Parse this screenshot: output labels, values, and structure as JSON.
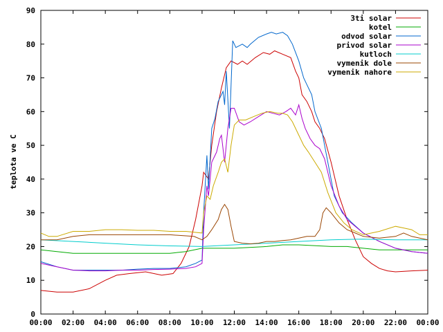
{
  "chart_data": {
    "type": "line",
    "title": "",
    "xlabel": "",
    "ylabel": "teplota ve C",
    "xlim": [
      0,
      24
    ],
    "ylim": [
      0,
      90
    ],
    "x_ticks": [
      {
        "value": 0,
        "label": "00:00"
      },
      {
        "value": 2,
        "label": "02:00"
      },
      {
        "value": 4,
        "label": "04:00"
      },
      {
        "value": 6,
        "label": "06:00"
      },
      {
        "value": 8,
        "label": "08:00"
      },
      {
        "value": 10,
        "label": "10:00"
      },
      {
        "value": 12,
        "label": "12:00"
      },
      {
        "value": 14,
        "label": "14:00"
      },
      {
        "value": 16,
        "label": "16:00"
      },
      {
        "value": 18,
        "label": "18:00"
      },
      {
        "value": 20,
        "label": "20:00"
      },
      {
        "value": 22,
        "label": "22:00"
      },
      {
        "value": 24,
        "label": "00:00"
      }
    ],
    "y_ticks": [
      0,
      10,
      20,
      30,
      40,
      50,
      60,
      70,
      80,
      90
    ],
    "grid": false,
    "legend_position": "top-right",
    "series": [
      {
        "name": "3ti solar",
        "color": "#cc0000",
        "points": [
          [
            0,
            7
          ],
          [
            1,
            6.5
          ],
          [
            2,
            6.5
          ],
          [
            3,
            7.5
          ],
          [
            4,
            10
          ],
          [
            4.7,
            11.5
          ],
          [
            5.5,
            12
          ],
          [
            6.5,
            12.5
          ],
          [
            7.5,
            11.5
          ],
          [
            8.2,
            12
          ],
          [
            8.7,
            15
          ],
          [
            9.2,
            20
          ],
          [
            9.6,
            28
          ],
          [
            10,
            38
          ],
          [
            10.1,
            42
          ],
          [
            10.4,
            40
          ],
          [
            10.6,
            50
          ],
          [
            10.9,
            60
          ],
          [
            11.2,
            67
          ],
          [
            11.5,
            73
          ],
          [
            11.8,
            75
          ],
          [
            12.2,
            74
          ],
          [
            12.5,
            75
          ],
          [
            12.8,
            74
          ],
          [
            13.3,
            76
          ],
          [
            13.8,
            77.5
          ],
          [
            14.2,
            77
          ],
          [
            14.5,
            78
          ],
          [
            15,
            77
          ],
          [
            15.5,
            76
          ],
          [
            15.8,
            72
          ],
          [
            16,
            70
          ],
          [
            16.2,
            65
          ],
          [
            16.5,
            63
          ],
          [
            16.8,
            60
          ],
          [
            17,
            57
          ],
          [
            17.3,
            55
          ],
          [
            17.6,
            52
          ],
          [
            18,
            45
          ],
          [
            18.5,
            35
          ],
          [
            19,
            28
          ],
          [
            19.5,
            22
          ],
          [
            20,
            17
          ],
          [
            20.5,
            15
          ],
          [
            21,
            13.5
          ],
          [
            21.5,
            12.8
          ],
          [
            22,
            12.5
          ],
          [
            23,
            12.8
          ],
          [
            24,
            13
          ]
        ]
      },
      {
        "name": "kotel",
        "color": "#00aa00",
        "points": [
          [
            0,
            19
          ],
          [
            1,
            18.5
          ],
          [
            2,
            18
          ],
          [
            4,
            18
          ],
          [
            6,
            18
          ],
          [
            8,
            18
          ],
          [
            9,
            18.5
          ],
          [
            10,
            19.5
          ],
          [
            11,
            19.5
          ],
          [
            12,
            19.5
          ],
          [
            14,
            20
          ],
          [
            15,
            20.5
          ],
          [
            16,
            20.5
          ],
          [
            18,
            20
          ],
          [
            19,
            20
          ],
          [
            20,
            19.5
          ],
          [
            21,
            19
          ],
          [
            22,
            19
          ],
          [
            23,
            19
          ],
          [
            24,
            19
          ]
        ]
      },
      {
        "name": "odvod solar",
        "color": "#0066cc",
        "points": [
          [
            0,
            15.5
          ],
          [
            1,
            14
          ],
          [
            2,
            13
          ],
          [
            3,
            13
          ],
          [
            4,
            13
          ],
          [
            5,
            13
          ],
          [
            6,
            13.3
          ],
          [
            7,
            13.5
          ],
          [
            8,
            13.5
          ],
          [
            9,
            14
          ],
          [
            9.6,
            15
          ],
          [
            10,
            16
          ],
          [
            10.1,
            30
          ],
          [
            10.3,
            47
          ],
          [
            10.4,
            37
          ],
          [
            10.6,
            55
          ],
          [
            10.8,
            58
          ],
          [
            11,
            63
          ],
          [
            11.3,
            66
          ],
          [
            11.4,
            62
          ],
          [
            11.5,
            72
          ],
          [
            11.7,
            55
          ],
          [
            11.9,
            81
          ],
          [
            12.1,
            79
          ],
          [
            12.5,
            80
          ],
          [
            12.8,
            79
          ],
          [
            13,
            80
          ],
          [
            13.5,
            82
          ],
          [
            14,
            83
          ],
          [
            14.3,
            83.5
          ],
          [
            14.6,
            83
          ],
          [
            15,
            83.5
          ],
          [
            15.3,
            82.5
          ],
          [
            15.6,
            80
          ],
          [
            16,
            75
          ],
          [
            16.3,
            70
          ],
          [
            16.5,
            68
          ],
          [
            16.8,
            65
          ],
          [
            17,
            60
          ],
          [
            17.4,
            55
          ],
          [
            17.8,
            45
          ],
          [
            18.2,
            35
          ],
          [
            18.7,
            30
          ],
          [
            19.3,
            27
          ],
          [
            20,
            24
          ],
          [
            21,
            21.5
          ],
          [
            22,
            19.5
          ],
          [
            23,
            18.5
          ],
          [
            24,
            18
          ]
        ]
      },
      {
        "name": "privod solar",
        "color": "#aa00cc",
        "points": [
          [
            0,
            15
          ],
          [
            1,
            14
          ],
          [
            2,
            13
          ],
          [
            3,
            12.8
          ],
          [
            4,
            12.8
          ],
          [
            5,
            13
          ],
          [
            6,
            13
          ],
          [
            7,
            13.2
          ],
          [
            8,
            13.3
          ],
          [
            9,
            13.5
          ],
          [
            9.6,
            14
          ],
          [
            10,
            15
          ],
          [
            10.1,
            25
          ],
          [
            10.3,
            38
          ],
          [
            10.4,
            35
          ],
          [
            10.6,
            45
          ],
          [
            10.9,
            48
          ],
          [
            11.1,
            52
          ],
          [
            11.2,
            53
          ],
          [
            11.4,
            45
          ],
          [
            11.6,
            55
          ],
          [
            11.8,
            61
          ],
          [
            12,
            61
          ],
          [
            12.3,
            57
          ],
          [
            12.6,
            56
          ],
          [
            13,
            57
          ],
          [
            13.5,
            58.5
          ],
          [
            14,
            60
          ],
          [
            14.4,
            59.5
          ],
          [
            14.8,
            59
          ],
          [
            15.2,
            60
          ],
          [
            15.5,
            61
          ],
          [
            15.8,
            59
          ],
          [
            16,
            62
          ],
          [
            16.2,
            58
          ],
          [
            16.4,
            55
          ],
          [
            16.7,
            52
          ],
          [
            17,
            50
          ],
          [
            17.3,
            49
          ],
          [
            17.6,
            46
          ],
          [
            18,
            38
          ],
          [
            18.5,
            32
          ],
          [
            19,
            28
          ],
          [
            19.5,
            26
          ],
          [
            20,
            24
          ],
          [
            21,
            21.5
          ],
          [
            22,
            19.5
          ],
          [
            23,
            18.5
          ],
          [
            24,
            18
          ]
        ]
      },
      {
        "name": "kutloch",
        "color": "#00cccc",
        "points": [
          [
            0,
            22
          ],
          [
            2,
            21.5
          ],
          [
            4,
            21
          ],
          [
            6,
            20.5
          ],
          [
            8,
            20.2
          ],
          [
            10,
            20
          ],
          [
            12,
            20.5
          ],
          [
            14,
            21
          ],
          [
            16,
            21.5
          ],
          [
            18,
            22
          ],
          [
            20,
            22.2
          ],
          [
            22,
            22
          ],
          [
            24,
            22
          ]
        ]
      },
      {
        "name": "vymenik dole",
        "color": "#994400",
        "points": [
          [
            0,
            22
          ],
          [
            1,
            22
          ],
          [
            2,
            23
          ],
          [
            3,
            23.5
          ],
          [
            4,
            23.5
          ],
          [
            6,
            23.5
          ],
          [
            8,
            23.5
          ],
          [
            9.5,
            23
          ],
          [
            10,
            22
          ],
          [
            10.3,
            23
          ],
          [
            10.6,
            25
          ],
          [
            11,
            28
          ],
          [
            11.2,
            31
          ],
          [
            11.4,
            32.5
          ],
          [
            11.6,
            31
          ],
          [
            11.8,
            26
          ],
          [
            12,
            21.5
          ],
          [
            12.5,
            21
          ],
          [
            13,
            20.8
          ],
          [
            13.5,
            21
          ],
          [
            14,
            21.5
          ],
          [
            14.5,
            21.5
          ],
          [
            15,
            21.8
          ],
          [
            15.5,
            22
          ],
          [
            16,
            22.5
          ],
          [
            16.5,
            23
          ],
          [
            17,
            23
          ],
          [
            17.3,
            25
          ],
          [
            17.5,
            30
          ],
          [
            17.7,
            31.5
          ],
          [
            18,
            30
          ],
          [
            18.5,
            27
          ],
          [
            19,
            25
          ],
          [
            19.5,
            24
          ],
          [
            20,
            23
          ],
          [
            21,
            22.5
          ],
          [
            22,
            23
          ],
          [
            22.5,
            24
          ],
          [
            23,
            23
          ],
          [
            24,
            22
          ]
        ]
      },
      {
        "name": "vymenik nahore",
        "color": "#ccaa00",
        "points": [
          [
            0,
            24
          ],
          [
            0.5,
            23
          ],
          [
            1,
            23
          ],
          [
            2,
            24.5
          ],
          [
            3,
            24.5
          ],
          [
            4,
            25
          ],
          [
            5,
            25
          ],
          [
            6,
            24.8
          ],
          [
            7,
            24.8
          ],
          [
            8,
            24.5
          ],
          [
            9,
            24.5
          ],
          [
            10,
            24
          ],
          [
            10.1,
            30
          ],
          [
            10.3,
            35
          ],
          [
            10.5,
            34
          ],
          [
            10.7,
            38
          ],
          [
            11,
            42
          ],
          [
            11.2,
            45
          ],
          [
            11.4,
            46
          ],
          [
            11.6,
            42
          ],
          [
            11.8,
            50
          ],
          [
            12,
            56
          ],
          [
            12.3,
            57.5
          ],
          [
            12.7,
            57.5
          ],
          [
            13.2,
            58.5
          ],
          [
            13.7,
            59.5
          ],
          [
            14.2,
            60
          ],
          [
            14.7,
            59.5
          ],
          [
            15,
            59.5
          ],
          [
            15.3,
            59
          ],
          [
            15.6,
            57
          ],
          [
            16,
            53
          ],
          [
            16.3,
            50
          ],
          [
            16.6,
            48
          ],
          [
            17,
            45
          ],
          [
            17.4,
            42
          ],
          [
            17.8,
            36
          ],
          [
            18.3,
            30
          ],
          [
            18.8,
            27
          ],
          [
            19.3,
            25
          ],
          [
            20,
            23.5
          ],
          [
            21,
            24.5
          ],
          [
            22,
            26
          ],
          [
            22.5,
            25.5
          ],
          [
            23,
            25
          ],
          [
            23.5,
            23.5
          ],
          [
            24,
            23.5
          ]
        ]
      }
    ]
  }
}
